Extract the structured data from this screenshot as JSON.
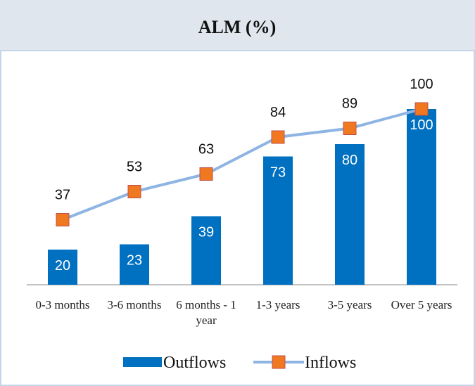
{
  "chart_data": {
    "type": "bar-line",
    "title": "ALM (%)",
    "categories": [
      "0-3 months",
      "3-6 months",
      "6 months - 1 year",
      "1-3 years",
      "3-5 years",
      "Over 5 years"
    ],
    "series": [
      {
        "name": "Outflows",
        "type": "bar",
        "color": "#0070c0",
        "values": [
          20,
          23,
          39,
          73,
          80,
          100
        ]
      },
      {
        "name": "Inflows",
        "type": "line",
        "color": "#8eb4e3",
        "marker_color": "#f07820",
        "values": [
          37,
          53,
          63,
          84,
          89,
          100
        ]
      }
    ],
    "ylim": [
      0,
      128
    ],
    "legend": "bottom"
  }
}
